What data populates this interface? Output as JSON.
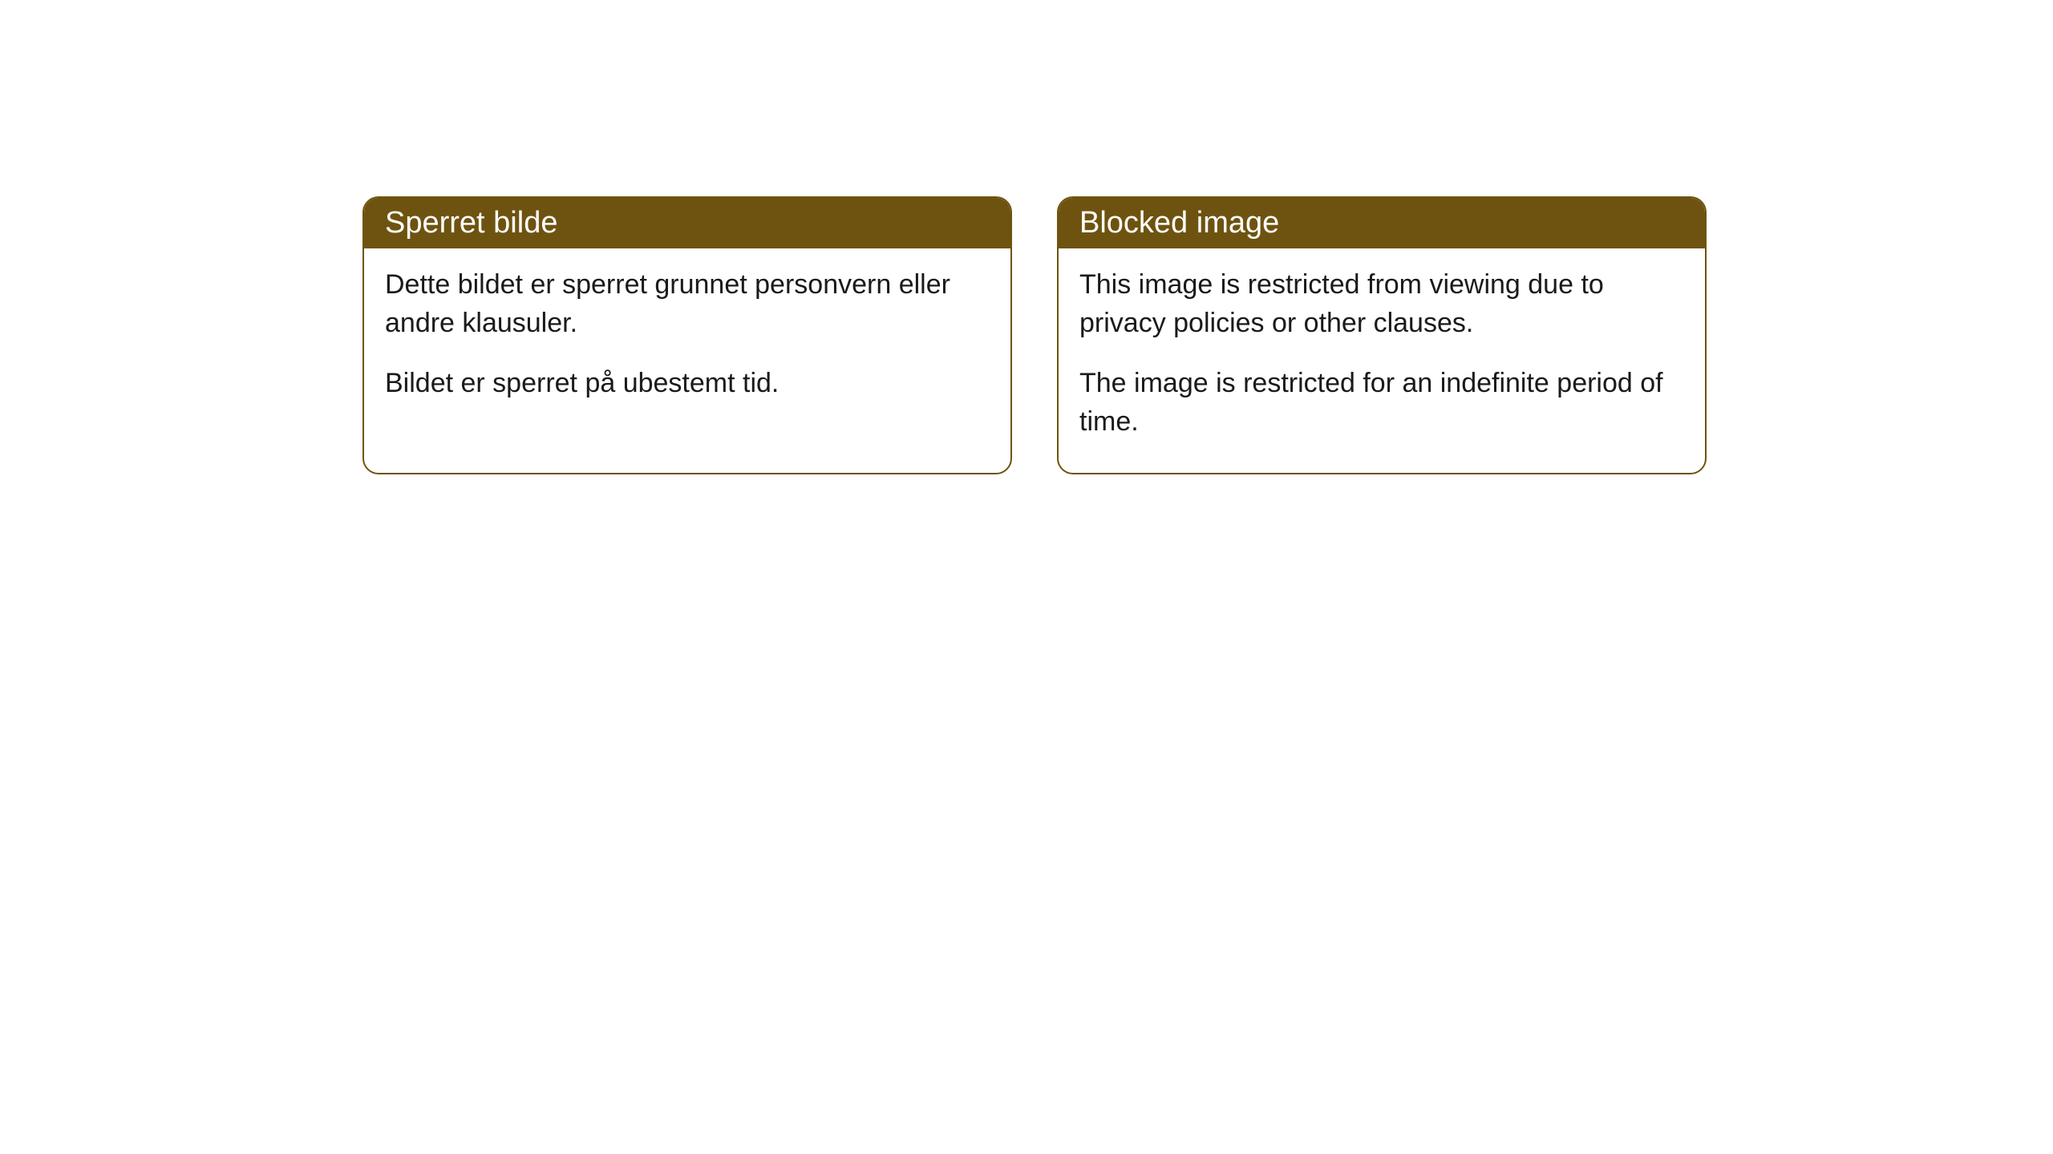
{
  "cards": [
    {
      "title": "Sperret bilde",
      "paragraph1": "Dette bildet er sperret grunnet personvern eller andre klausuler.",
      "paragraph2": "Bildet er sperret på ubestemt tid."
    },
    {
      "title": "Blocked image",
      "paragraph1": "This image is restricted from viewing due to privacy policies or other clauses.",
      "paragraph2": "The image is restricted for an indefinite period of time."
    }
  ],
  "styling": {
    "card_border_color": "#6e5310",
    "card_header_bg": "#6e5310",
    "card_header_text_color": "#ffffff",
    "card_body_bg": "#ffffff",
    "card_body_text_color": "#1a1a1a",
    "card_border_radius": 20,
    "header_font_size": 38,
    "body_font_size": 34,
    "page_bg": "#ffffff"
  }
}
